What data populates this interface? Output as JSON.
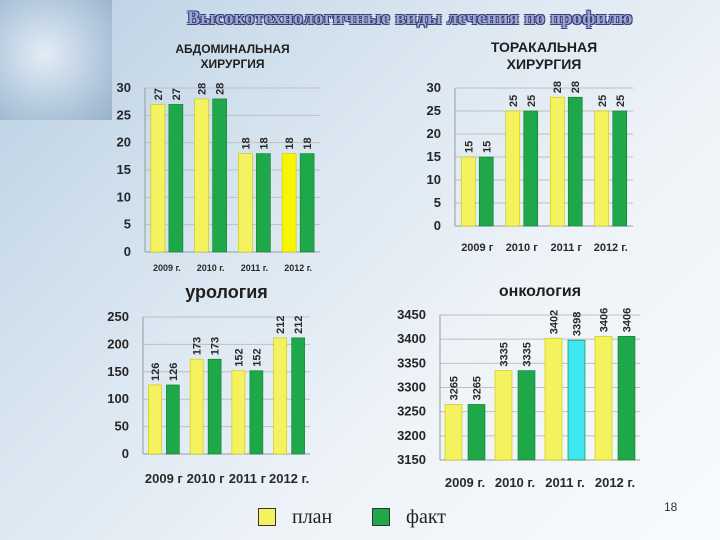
{
  "slide": {
    "title": "Высокотехнологичные виды лечения по профилю",
    "page_number": "18"
  },
  "colors": {
    "plan": "#f4f25e",
    "fact": "#1ea84a",
    "highlight": "#3ee6f0",
    "grid": "#bfbfbf"
  },
  "legend": {
    "plan_label": "план",
    "fact_label": "факт"
  },
  "chart_data": [
    {
      "type": "bar",
      "title": "АБДОМИНАЛЬНАЯ ХИРУРГИЯ",
      "categories": [
        "2009 г.",
        "2010 г.",
        "2011 г.",
        "2012 г."
      ],
      "series": [
        {
          "name": "план",
          "values": [
            27,
            28,
            18,
            18
          ]
        },
        {
          "name": "факт",
          "values": [
            27,
            28,
            18,
            18
          ]
        }
      ],
      "bar_colors": [
        [
          "#f4f25e",
          "#1ea84a"
        ],
        [
          "#f4f25e",
          "#1ea84a"
        ],
        [
          "#f4f25e",
          "#1ea84a"
        ],
        [
          "#f8f500",
          "#1ea84a"
        ]
      ],
      "ylim": [
        0,
        30
      ],
      "yticks": [
        0,
        5,
        10,
        15,
        20,
        25,
        30
      ],
      "grid": true
    },
    {
      "type": "bar",
      "title": "ТОРАКАЛЬНАЯ ХИРУРГИЯ",
      "categories": [
        "2009 г",
        "2010 г",
        "2011 г",
        "2012 г."
      ],
      "series": [
        {
          "name": "план",
          "values": [
            15,
            25,
            28,
            25
          ]
        },
        {
          "name": "факт",
          "values": [
            15,
            25,
            28,
            25
          ]
        }
      ],
      "ylim": [
        0,
        30
      ],
      "yticks": [
        0,
        5,
        10,
        15,
        20,
        25,
        30
      ],
      "grid": true
    },
    {
      "type": "bar",
      "title": "урология",
      "categories": [
        "2009 г",
        "2010 г",
        "2011 г",
        "2012 г."
      ],
      "series": [
        {
          "name": "план",
          "values": [
            126,
            173,
            152,
            212
          ]
        },
        {
          "name": "факт",
          "values": [
            126,
            173,
            152,
            212
          ]
        }
      ],
      "ylim": [
        0,
        250
      ],
      "yticks": [
        0,
        50,
        100,
        150,
        200,
        250
      ],
      "grid": true
    },
    {
      "type": "bar",
      "title": "онкология",
      "categories": [
        "2009 г.",
        "2010 г.",
        "2011 г.",
        "2012 г."
      ],
      "series": [
        {
          "name": "план",
          "values": [
            3265,
            3335,
            3402,
            3406
          ]
        },
        {
          "name": "факт",
          "values": [
            3265,
            3335,
            3398,
            3406
          ]
        }
      ],
      "bar_colors": [
        [
          "#f4f25e",
          "#1ea84a"
        ],
        [
          "#f4f25e",
          "#1ea84a"
        ],
        [
          "#f4f25e",
          "#3ee6f0"
        ],
        [
          "#f4f25e",
          "#1ea84a"
        ]
      ],
      "ylim": [
        3150,
        3450
      ],
      "yticks": [
        3150,
        3200,
        3250,
        3300,
        3350,
        3400,
        3450
      ],
      "grid": true
    }
  ]
}
